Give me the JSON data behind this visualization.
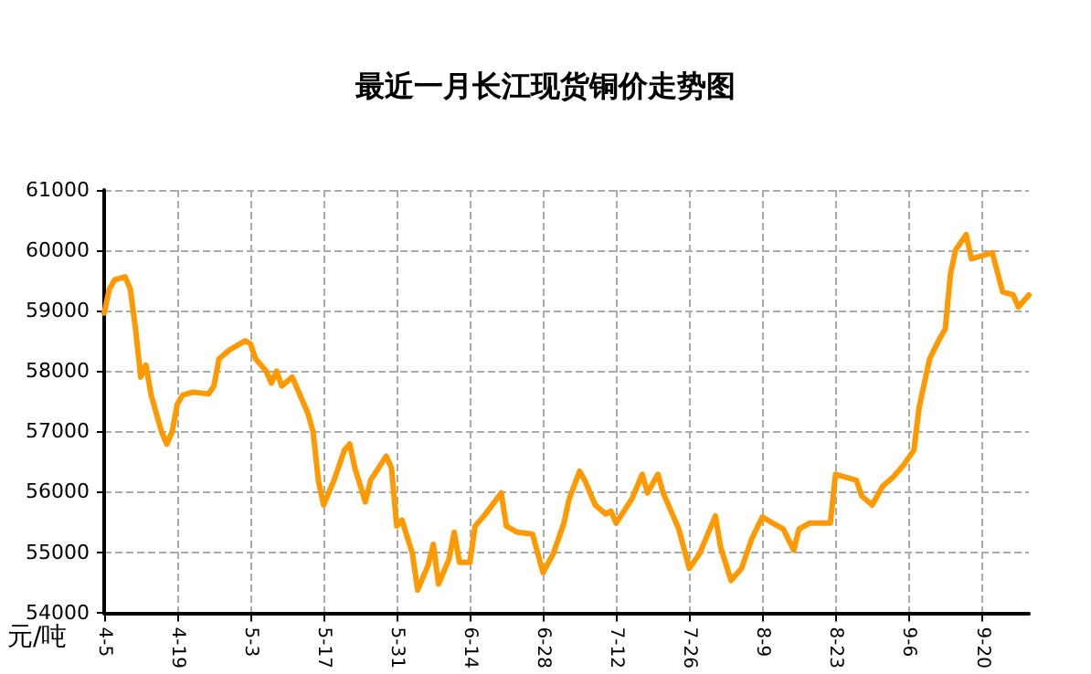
{
  "chart_data": {
    "type": "line",
    "title": "最近一月长江现货铜价走势图",
    "ylabel": "元/吨",
    "color": "#ff9900",
    "line_style": "solid",
    "marker": "none",
    "grid": true,
    "x": [
      "--04-05",
      "--04-06",
      "--04-07",
      "--04-09",
      "--04-10",
      "--04-11",
      "--04-12",
      "--04-13",
      "--04-14",
      "--04-16",
      "--04-17",
      "--04-18",
      "--04-19",
      "--04-20",
      "--04-22",
      "--04-25",
      "--04-26",
      "--04-27",
      "--04-29",
      "--05-02",
      "--05-03",
      "--05-04",
      "--05-06",
      "--05-07",
      "--05-08",
      "--05-09",
      "--05-11",
      "--05-12",
      "--05-14",
      "--05-15",
      "--05-16",
      "--05-17",
      "--05-19",
      "--05-21",
      "--05-22",
      "--05-23",
      "--05-25",
      "--05-26",
      "--05-29",
      "--05-30",
      "--05-31",
      "--06-01",
      "--06-03",
      "--06-04",
      "--06-06",
      "--06-07",
      "--06-08",
      "--06-10",
      "--06-11",
      "--06-12",
      "--06-14",
      "--06-15",
      "--06-17",
      "--06-20",
      "--06-21",
      "--06-23",
      "--06-26",
      "--06-28",
      "--06-30",
      "--07-02",
      "--07-03",
      "--07-05",
      "--07-06",
      "--07-08",
      "--07-10",
      "--07-11",
      "--07-12",
      "--07-15",
      "--07-17",
      "--07-18",
      "--07-20",
      "--07-21",
      "--07-24",
      "--07-26",
      "--07-28",
      "--07-31",
      "--08-01",
      "--08-03",
      "--08-05",
      "--08-07",
      "--08-09",
      "--08-11",
      "--08-13",
      "--08-15",
      "--08-16",
      "--08-18",
      "--08-22",
      "--08-23",
      "--08-25",
      "--08-27",
      "--08-28",
      "--08-30",
      "--09-01",
      "--09-03",
      "--09-05",
      "--09-07",
      "--09-08",
      "--09-10",
      "--09-12",
      "--09-13",
      "--09-14",
      "--09-15",
      "--09-17",
      "--09-18",
      "--09-20",
      "--09-22",
      "--09-24",
      "--09-26",
      "--09-27",
      "--09-29"
    ],
    "values": [
      58960,
      59360,
      59510,
      59560,
      59360,
      58700,
      57900,
      58100,
      57600,
      56990,
      56790,
      56990,
      57450,
      57600,
      57650,
      57620,
      57750,
      58200,
      58350,
      58500,
      58450,
      58200,
      58000,
      57800,
      58000,
      57750,
      57900,
      57700,
      57300,
      56990,
      56190,
      55780,
      56190,
      56690,
      56790,
      56390,
      55830,
      56190,
      56590,
      56390,
      55430,
      55530,
      54980,
      54370,
      54780,
      55130,
      54470,
      54880,
      55330,
      54830,
      54830,
      55430,
      55630,
      55980,
      55430,
      55330,
      55300,
      54660,
      54980,
      55480,
      55880,
      56340,
      56190,
      55780,
      55630,
      55680,
      55480,
      55880,
      56290,
      55980,
      56290,
      55980,
      55380,
      54730,
      54980,
      55600,
      55080,
      54530,
      54730,
      55230,
      55580,
      55480,
      55380,
      55030,
      55380,
      55480,
      55480,
      56290,
      56240,
      56190,
      55930,
      55780,
      56090,
      56240,
      56440,
      56690,
      57400,
      58200,
      58550,
      58700,
      59610,
      60010,
      60260,
      59860,
      59910,
      59960,
      59310,
      59260,
      59060,
      59260
    ],
    "xlim": [
      "--04-05",
      "--09-29"
    ],
    "xticks": [
      {
        "value": "--04-05",
        "label": "4-5"
      },
      {
        "value": "--04-19",
        "label": "4-19"
      },
      {
        "value": "--05-03",
        "label": "5-3"
      },
      {
        "value": "--05-17",
        "label": "5-17"
      },
      {
        "value": "--05-31",
        "label": "5-31"
      },
      {
        "value": "--06-14",
        "label": "6-14"
      },
      {
        "value": "--06-28",
        "label": "6-28"
      },
      {
        "value": "--07-12",
        "label": "7-12"
      },
      {
        "value": "--07-26",
        "label": "7-26"
      },
      {
        "value": "--08-09",
        "label": "8-9"
      },
      {
        "value": "--08-23",
        "label": "8-23"
      },
      {
        "value": "--09-06",
        "label": "9-6"
      },
      {
        "value": "--09-20",
        "label": "9-20"
      }
    ],
    "ylim": [
      54000,
      61000
    ],
    "yticks": [
      54000,
      55000,
      56000,
      57000,
      58000,
      59000,
      60000,
      61000
    ]
  }
}
